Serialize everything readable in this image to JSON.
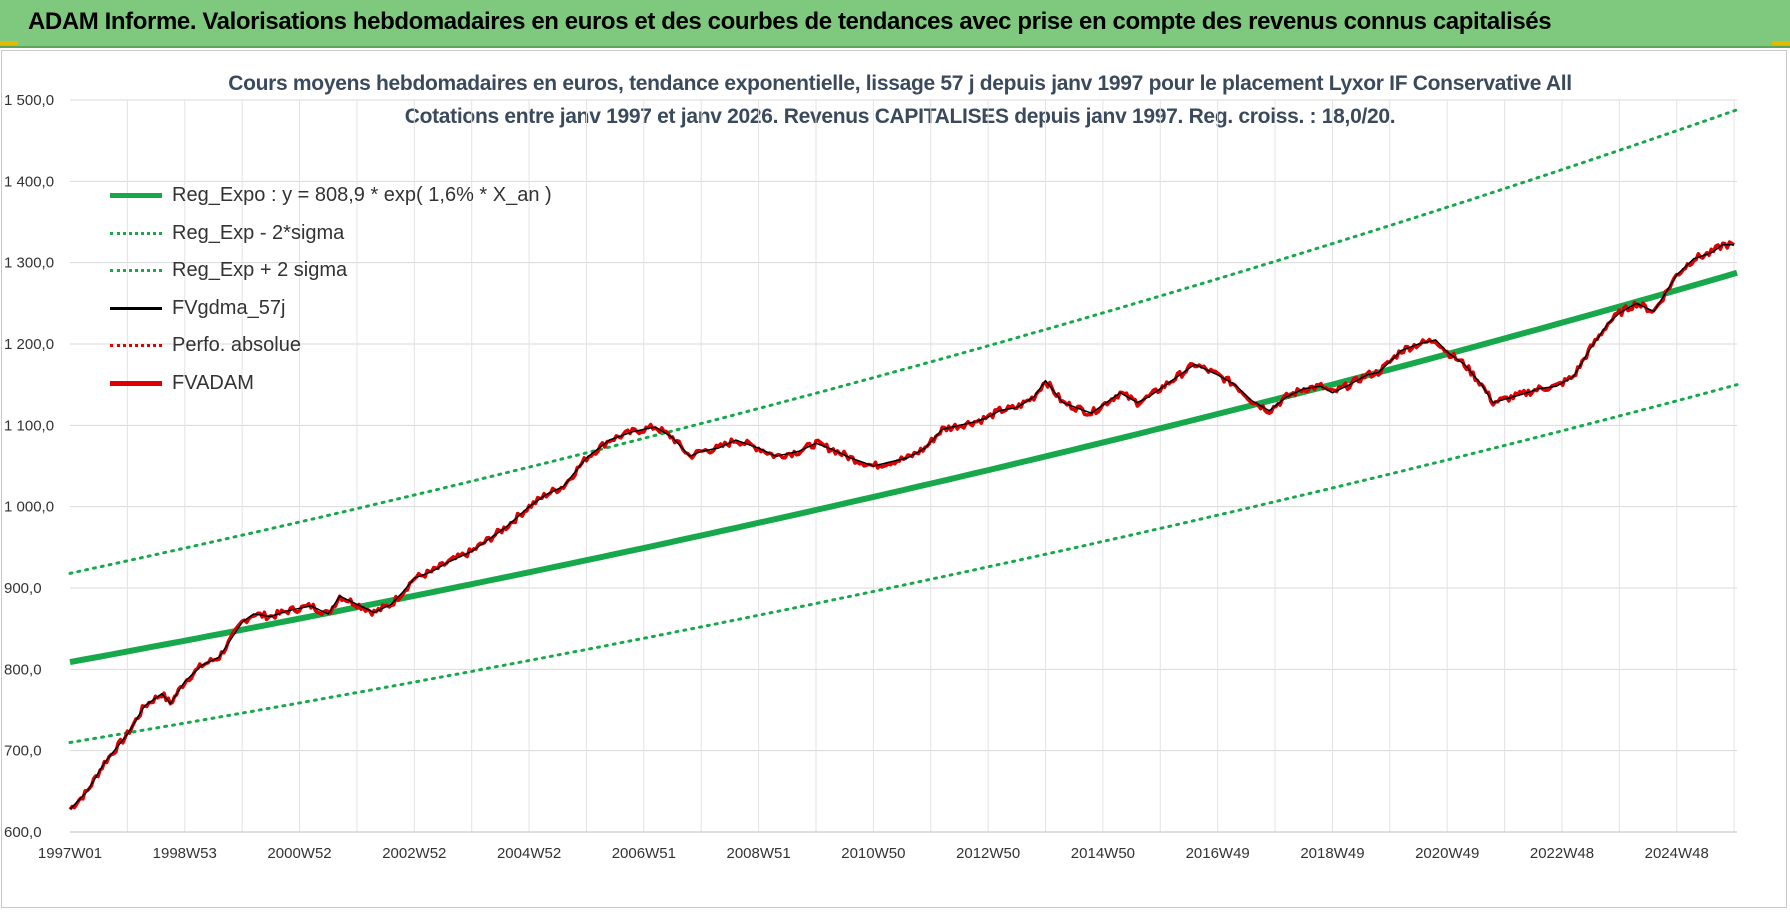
{
  "banner": {
    "title": "ADAM Informe. Valorisations hebdomadaires en euros et des courbes de tendances avec prise en compte des revenus connus capitalisés"
  },
  "chart_data": {
    "type": "line",
    "title_line1": "Cours moyens hebdomadaires en euros, tendance exponentielle, lissage 57 j depuis janv 1997 pour le placement Lyxor IF Conservative All",
    "title_line2": "Cotations entre janv 1997 et janv 2026. Revenus CAPITALISES depuis janv 1997. Reg. croiss. : 18,0/20.",
    "xlabel": "",
    "ylabel": "",
    "ylim": [
      600,
      1500
    ],
    "x_range_years": [
      1997.0,
      2026.05
    ],
    "y_ticks": [
      "600,0",
      "700,0",
      "800,0",
      "900,0",
      "1 000,0",
      "1 100,0",
      "1 200,0",
      "1 300,0",
      "1 400,0",
      "1 500,0"
    ],
    "y_tick_values": [
      600,
      700,
      800,
      900,
      1000,
      1100,
      1200,
      1300,
      1400,
      1500
    ],
    "x_ticks": [
      "1997W01",
      "1998W53",
      "2000W52",
      "2002W52",
      "2004W52",
      "2006W51",
      "2008W51",
      "2010W50",
      "2012W50",
      "2014W50",
      "2016W49",
      "2018W49",
      "2020W49",
      "2022W48",
      "2024W48"
    ],
    "x_tick_years": [
      1997.0,
      1999.0,
      2001.0,
      2003.0,
      2005.0,
      2007.0,
      2009.0,
      2011.0,
      2013.0,
      2015.0,
      2017.0,
      2019.0,
      2021.0,
      2023.0,
      2025.0
    ],
    "regression": {
      "a": 808.9,
      "rate": 0.016,
      "sigma_band_low": [
        710,
        1150
      ],
      "sigma_band_high": [
        918,
        1488
      ]
    },
    "legend": [
      {
        "label": "Reg_Expo : y = 808,9 * exp( 1,6% *  X_an )",
        "color": "#16a84a",
        "style": "thick"
      },
      {
        "label": "Reg_Exp - 2*sigma",
        "color": "#16a84a",
        "style": "dotted"
      },
      {
        "label": "Reg_Exp + 2 sigma",
        "color": "#16a84a",
        "style": "dotted"
      },
      {
        "label": "FVgdma_57j",
        "color": "#000000",
        "style": "solid"
      },
      {
        "label": "Perfo. absolue",
        "color": "#e00000",
        "style": "dotted"
      },
      {
        "label": "FVADAM",
        "color": "#e00000",
        "style": "thick"
      }
    ],
    "series_fvadam": {
      "x": [
        1997.0,
        1997.3,
        1997.6,
        1998.0,
        1998.3,
        1998.6,
        1998.75,
        1999.0,
        1999.3,
        1999.6,
        2000.0,
        2000.2,
        2000.5,
        2000.8,
        2001.2,
        2001.5,
        2001.7,
        2002.0,
        2002.3,
        2002.6,
        2002.8,
        2003.0,
        2003.3,
        2003.6,
        2004.0,
        2004.3,
        2004.6,
        2005.0,
        2005.3,
        2005.6,
        2006.0,
        2006.4,
        2006.8,
        2007.2,
        2007.5,
        2007.8,
        2008.0,
        2008.3,
        2008.6,
        2009.0,
        2009.3,
        2009.7,
        2010.0,
        2010.3,
        2010.6,
        2011.0,
        2011.3,
        2011.6,
        2011.9,
        2012.2,
        2012.5,
        2012.8,
        2013.0,
        2013.2,
        2013.5,
        2013.8,
        2014.0,
        2014.3,
        2014.6,
        2014.8,
        2015.0,
        2015.3,
        2015.6,
        2015.8,
        2016.0,
        2016.3,
        2016.6,
        2017.0,
        2017.3,
        2017.6,
        2017.9,
        2018.2,
        2018.5,
        2018.8,
        2019.0,
        2019.3,
        2019.6,
        2019.8,
        2020.0,
        2020.2,
        2020.5,
        2020.8,
        2021.0,
        2021.3,
        2021.6,
        2021.8,
        2022.0,
        2022.3,
        2022.6,
        2022.9,
        2023.2,
        2023.5,
        2023.8,
        2024.0,
        2024.3,
        2024.6,
        2024.8,
        2025.0,
        2025.3,
        2025.6,
        2025.8,
        2026.0
      ],
      "y": [
        628,
        650,
        685,
        720,
        755,
        770,
        758,
        785,
        805,
        815,
        858,
        868,
        865,
        872,
        878,
        868,
        890,
        880,
        870,
        880,
        895,
        912,
        920,
        932,
        945,
        960,
        975,
        1000,
        1015,
        1025,
        1060,
        1082,
        1092,
        1098,
        1085,
        1062,
        1068,
        1072,
        1082,
        1072,
        1062,
        1068,
        1078,
        1070,
        1060,
        1050,
        1055,
        1060,
        1072,
        1095,
        1100,
        1105,
        1110,
        1118,
        1122,
        1135,
        1155,
        1128,
        1120,
        1115,
        1125,
        1140,
        1128,
        1135,
        1145,
        1160,
        1175,
        1162,
        1150,
        1130,
        1118,
        1135,
        1145,
        1148,
        1140,
        1150,
        1162,
        1165,
        1178,
        1192,
        1200,
        1205,
        1190,
        1175,
        1150,
        1128,
        1132,
        1138,
        1145,
        1148,
        1160,
        1195,
        1225,
        1238,
        1250,
        1240,
        1262,
        1285,
        1305,
        1312,
        1322,
        1322
      ]
    }
  }
}
